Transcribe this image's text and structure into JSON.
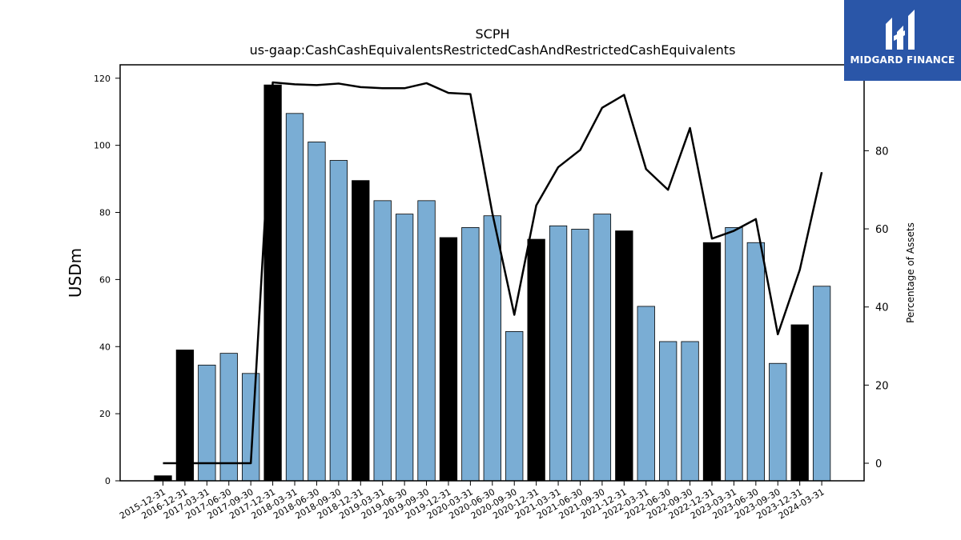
{
  "logo": {
    "text": "MIDGARD FINANCE",
    "bg_color": "#2a56a8",
    "icon": "mh-monogram-icon"
  },
  "chart_data": {
    "type": "bar",
    "title": "SCPH",
    "subtitle": "us-gaap:CashCashEquivalentsRestrictedCashAndRestrictedCashEquivalents",
    "ylabel": "USDm",
    "y2label": "Percentage of Assets",
    "ylim": [
      0,
      124
    ],
    "y2lim": [
      -4.5,
      102
    ],
    "yticks": [
      0,
      20,
      40,
      60,
      80,
      100,
      120
    ],
    "y2ticks": [
      0,
      20,
      40,
      60,
      80
    ],
    "grid": false,
    "colors": {
      "annual": "#000000",
      "quarterly": "#7aadd4",
      "line": "#000000"
    },
    "categories": [
      "2015-12-31",
      "2016-12-31",
      "2017-03-31",
      "2017-06-30",
      "2017-09-30",
      "2017-12-31",
      "2018-03-31",
      "2018-06-30",
      "2018-09-30",
      "2018-12-31",
      "2019-03-31",
      "2019-06-30",
      "2019-09-30",
      "2019-12-31",
      "2020-03-31",
      "2020-06-30",
      "2020-09-30",
      "2020-12-31",
      "2021-03-31",
      "2021-06-30",
      "2021-09-30",
      "2021-12-31",
      "2022-03-31",
      "2022-06-30",
      "2022-09-30",
      "2022-12-31",
      "2023-03-31",
      "2023-06-30",
      "2023-09-30",
      "2023-12-31",
      "2024-03-31"
    ],
    "series": [
      {
        "type": "bar",
        "axis": "left",
        "values": [
          1.5,
          39,
          34.5,
          38,
          32,
          118,
          109.5,
          101,
          95.5,
          89.5,
          83.5,
          79.5,
          83.5,
          72.5,
          75.5,
          79,
          44.5,
          72,
          76,
          75,
          79.5,
          74.5,
          52,
          41.5,
          41.5,
          71,
          75.5,
          71,
          35,
          46.5,
          58
        ],
        "period": [
          "annual",
          "annual",
          "quarterly",
          "quarterly",
          "quarterly",
          "annual",
          "quarterly",
          "quarterly",
          "quarterly",
          "annual",
          "quarterly",
          "quarterly",
          "quarterly",
          "annual",
          "quarterly",
          "quarterly",
          "quarterly",
          "annual",
          "quarterly",
          "quarterly",
          "quarterly",
          "annual",
          "quarterly",
          "quarterly",
          "quarterly",
          "annual",
          "quarterly",
          "quarterly",
          "quarterly",
          "annual",
          "quarterly"
        ]
      },
      {
        "type": "line",
        "axis": "right",
        "values": [
          0,
          0,
          0,
          0,
          0,
          97.5,
          97,
          96.8,
          97.2,
          96.3,
          96,
          96,
          97.3,
          94.8,
          94.5,
          64,
          38,
          66,
          75.8,
          80.2,
          91,
          94.3,
          75.3,
          70,
          85.8,
          57.5,
          59.5,
          62.5,
          33,
          49.5,
          74.5
        ]
      }
    ]
  }
}
